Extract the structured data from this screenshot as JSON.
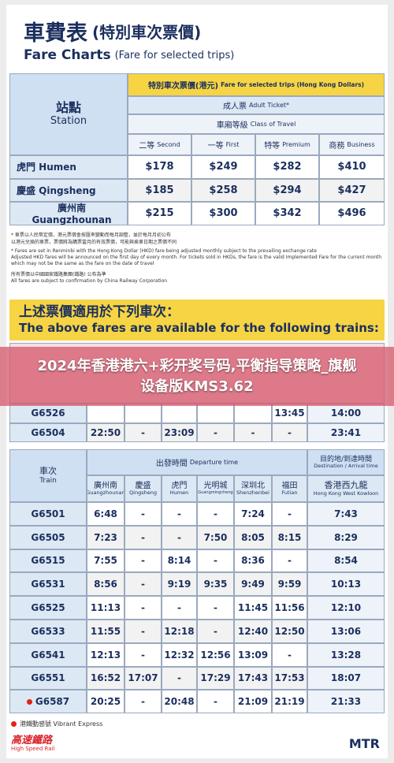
{
  "header": {
    "title_zh": "車費表",
    "title_zh_sub": "(特別車次票價)",
    "title_en": "Fare Charts",
    "title_en_sub": "(Fare for selected trips)"
  },
  "fare_table": {
    "station_header": {
      "zh": "站點",
      "en": "Station"
    },
    "fare_header": {
      "zh": "特別車次票價(港元)",
      "en": "Fare for selected trips (Hong Kong Dollars)"
    },
    "ticket": {
      "zh": "成人票",
      "en": "Adult Ticket*"
    },
    "class_label": {
      "zh": "車廂等級",
      "en": "Class of Travel"
    },
    "classes": [
      {
        "zh": "二等",
        "en": "Second"
      },
      {
        "zh": "一等",
        "en": "First"
      },
      {
        "zh": "特等",
        "en": "Premium"
      },
      {
        "zh": "商務",
        "en": "Business"
      }
    ],
    "rows": [
      {
        "station": "虎門 Humen",
        "fares": [
          "$178",
          "$249",
          "$282",
          "$410"
        ]
      },
      {
        "station": "慶盛 Qingsheng",
        "fares": [
          "$185",
          "$258",
          "$294",
          "$427"
        ]
      },
      {
        "station": "廣州南 Guangzhounan",
        "fares": [
          "$215",
          "$300",
          "$342",
          "$496"
        ]
      }
    ]
  },
  "notes": [
    "* 車票以人民幣定價，港元票價會按匯率變動而每月調整，並於每月月初公布",
    "以港元兌換的車票，票價將為購票當月的有效票價，可能與乘車日期之票價不同",
    "* Fares are set in Renminbi with the Hong Kong Dollar (HKD) fare being adjusted monthly subject to the prevailing exchange rate",
    "Adjusted HKD fares will be announced on the first day of every month. For tickets sold in HKDs, the fare is the valid Implemented Fare for the current month",
    "which may not be the same as the fare on the date of travel",
    "所有票價以中國國家鐵路集團(鐵路) 公布為準",
    "All fares are subject to confirmation by China Railway Corporation"
  ],
  "trains_heading": {
    "zh": "上述票價適用於下列車次：",
    "en": "The above fares are available for the following trains:"
  },
  "overlay_title": "2024年香港港六+彩开奖号码,平衡指导策略_旗舰设备版KMS3.62",
  "table1": {
    "rows": [
      {
        "train": "G6526",
        "times": [
          null,
          null,
          null,
          null,
          null,
          "13:45",
          "14:00"
        ]
      },
      {
        "train": "G6504",
        "times": [
          "22:50",
          "-",
          "23:09",
          "-",
          "-",
          "-",
          "23:41"
        ]
      }
    ]
  },
  "table2": {
    "train_header": {
      "zh": "車次",
      "en": "Train"
    },
    "departure_header": {
      "zh": "出發時間",
      "en": "Departure time"
    },
    "arrival_header": {
      "zh": "目的地/到達時間",
      "en": "Destination / Arrival time"
    },
    "stations": [
      {
        "zh": "廣州南",
        "en": "Guangzhounan"
      },
      {
        "zh": "慶盛",
        "en": "Qingsheng"
      },
      {
        "zh": "虎門",
        "en": "Humen"
      },
      {
        "zh": "光明城",
        "en": "Guangmingcheng"
      },
      {
        "zh": "深圳北",
        "en": "Shenzhenbei"
      },
      {
        "zh": "福田",
        "en": "Futian"
      },
      {
        "zh": "香港西九龍",
        "en": "Hong Kong West Kowloon"
      }
    ],
    "rows": [
      {
        "train": "G6501",
        "times": [
          "6:48",
          "-",
          "-",
          "-",
          "7:24",
          "-",
          "7:43"
        ]
      },
      {
        "train": "G6505",
        "times": [
          "7:23",
          "-",
          "-",
          "7:50",
          "8:05",
          "8:15",
          "8:29"
        ]
      },
      {
        "train": "G6515",
        "times": [
          "7:55",
          "-",
          "8:14",
          "-",
          "8:36",
          "-",
          "8:54"
        ]
      },
      {
        "train": "G6531",
        "times": [
          "8:56",
          "-",
          "9:19",
          "9:35",
          "9:49",
          "9:59",
          "10:13"
        ]
      },
      {
        "train": "G6525",
        "times": [
          "11:13",
          "-",
          "-",
          "-",
          "11:45",
          "11:56",
          "12:10"
        ]
      },
      {
        "train": "G6533",
        "times": [
          "11:55",
          "-",
          "12:18",
          "-",
          "12:40",
          "12:50",
          "13:06"
        ]
      },
      {
        "train": "G6541",
        "times": [
          "12:13",
          "-",
          "12:32",
          "12:56",
          "13:09",
          "-",
          "13:28"
        ]
      },
      {
        "train": "G6551",
        "times": [
          "16:52",
          "17:07",
          "-",
          "17:29",
          "17:43",
          "17:53",
          "18:07"
        ]
      },
      {
        "train": "G6587",
        "times": [
          "20:25",
          "-",
          "20:48",
          "-",
          "21:09",
          "21:19",
          "21:33"
        ],
        "vibrant": true
      }
    ]
  },
  "legend": "港鐵動感號 Vibrant Express",
  "footer": {
    "left_zh": "高速鐵路",
    "left_en": "High Speed Rail",
    "right": "MTR"
  }
}
